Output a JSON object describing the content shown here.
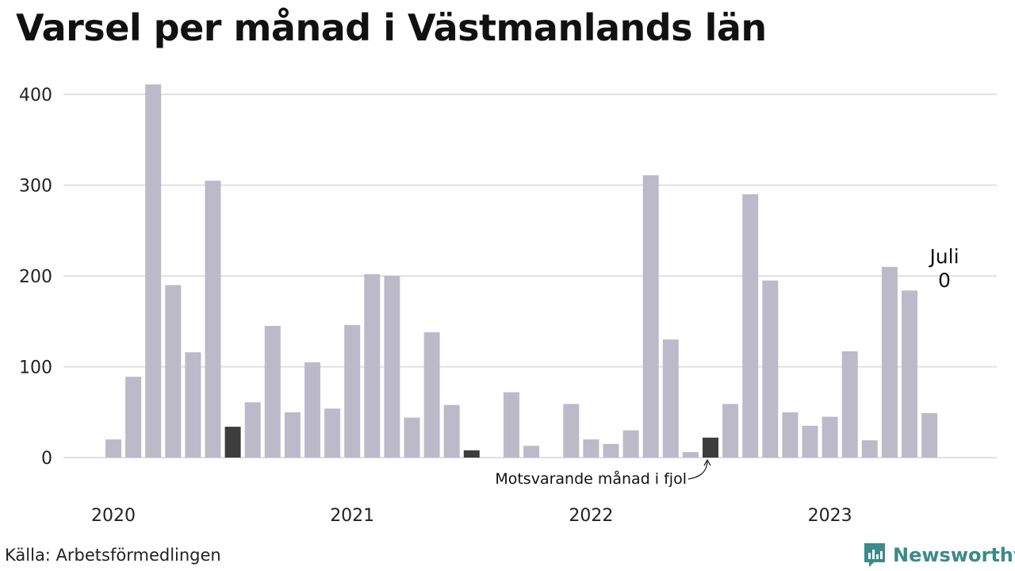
{
  "title": "Varsel per månad i Västmanlands län",
  "source": "Källa: Arbetsförmedlingen",
  "brand": "Newsworthy",
  "colors": {
    "bar": "#bcbac8",
    "highlight": "#3d3d3d",
    "grid": "#e0e0e6",
    "brand": "#3c8a8a"
  },
  "chart_data": {
    "type": "bar",
    "title": "Varsel per månad i Västmanlands län",
    "xlabel": "",
    "ylabel": "",
    "ylim": [
      0,
      400
    ],
    "yticks": [
      "0",
      "100",
      "200",
      "300",
      "400"
    ],
    "year_labels": [
      "2020",
      "2021",
      "2022",
      "2023"
    ],
    "categories": [
      "2020-01",
      "2020-02",
      "2020-03",
      "2020-04",
      "2020-05",
      "2020-06",
      "2020-07",
      "2020-08",
      "2020-09",
      "2020-10",
      "2020-11",
      "2020-12",
      "2021-01",
      "2021-02",
      "2021-03",
      "2021-04",
      "2021-05",
      "2021-06",
      "2021-07",
      "2021-08",
      "2021-09",
      "2021-10",
      "2021-11",
      "2021-12",
      "2022-01",
      "2022-02",
      "2022-03",
      "2022-04",
      "2022-05",
      "2022-06",
      "2022-07",
      "2022-08",
      "2022-09",
      "2022-10",
      "2022-11",
      "2022-12",
      "2023-01",
      "2023-02",
      "2023-03",
      "2023-04",
      "2023-05",
      "2023-06",
      "2023-07"
    ],
    "values": [
      20,
      89,
      411,
      190,
      116,
      305,
      34,
      61,
      145,
      50,
      105,
      54,
      146,
      202,
      200,
      44,
      138,
      58,
      8,
      0,
      72,
      13,
      0,
      59,
      20,
      15,
      30,
      311,
      130,
      6,
      22,
      59,
      290,
      195,
      50,
      35,
      45,
      117,
      19,
      210,
      184,
      49,
      0
    ],
    "highlighted": [
      "2020-07",
      "2021-07",
      "2022-07"
    ],
    "grid": true,
    "annotations": {
      "current_month": "Juli",
      "current_value": "0",
      "previous_year": "Motsvarande månad i fjol"
    }
  }
}
